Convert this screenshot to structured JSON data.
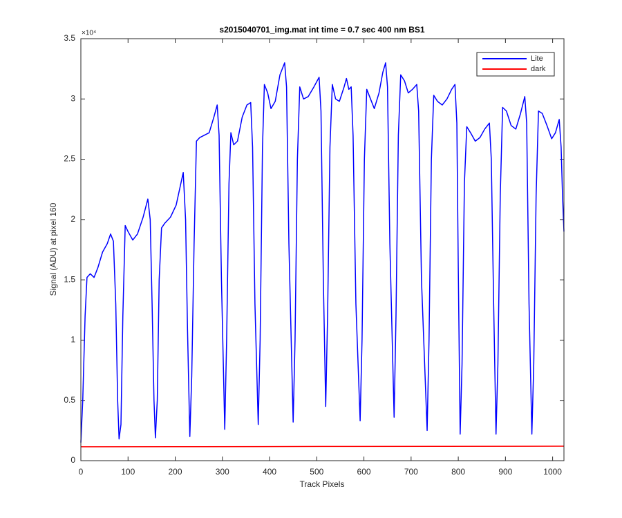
{
  "chart_data": {
    "type": "line",
    "title": "s2015040701_img.mat int time = 0.7 sec  400 nm BS1",
    "x_label": "Track Pixels",
    "y_label": "Signal (ADU) at pixel 160",
    "y_exponent": "×10⁴",
    "xlim": [
      0,
      1024
    ],
    "ylim": [
      0,
      3.5
    ],
    "xticks": [
      0,
      100,
      200,
      300,
      400,
      500,
      600,
      700,
      800,
      900,
      1000
    ],
    "yticks": [
      0,
      0.5,
      1,
      1.5,
      2,
      2.5,
      3,
      3.5
    ],
    "legend_position": "northeast",
    "series": [
      {
        "name": "Lite",
        "color": "#0000ff",
        "x": [
          0,
          4,
          9,
          13,
          20,
          28,
          36,
          46,
          56,
          63,
          69,
          74,
          78,
          81,
          85,
          89,
          94,
          100,
          110,
          120,
          132,
          142,
          147,
          151,
          155,
          158,
          162,
          166,
          171,
          178,
          190,
          202,
          212,
          217,
          222,
          226,
          231,
          235,
          240,
          245,
          252,
          262,
          272,
          282,
          289,
          293,
          298,
          305,
          309,
          314,
          318,
          324,
          332,
          342,
          352,
          360,
          364,
          369,
          376,
          380,
          385,
          389,
          396,
          403,
          412,
          422,
          432,
          436,
          441,
          450,
          454,
          459,
          464,
          472,
          482,
          494,
          505,
          509,
          514,
          519,
          523,
          528,
          533,
          540,
          548,
          558,
          563,
          568,
          573,
          577,
          583,
          592,
          596,
          601,
          606,
          614,
          622,
          632,
          640,
          646,
          650,
          655,
          664,
          668,
          673,
          678,
          686,
          694,
          703,
          712,
          716,
          722,
          734,
          738,
          743,
          748,
          756,
          766,
          776,
          786,
          793,
          797,
          800,
          804,
          808,
          813,
          818,
          826,
          836,
          846,
          856,
          866,
          870,
          875,
          880,
          884,
          889,
          894,
          902,
          912,
          922,
          932,
          941,
          945,
          950,
          956,
          960,
          965,
          970,
          978,
          988,
          998,
          1006,
          1014,
          1018,
          1021,
          1024
        ],
        "values": [
          0.15,
          0.5,
          1.2,
          1.52,
          1.55,
          1.52,
          1.6,
          1.73,
          1.8,
          1.88,
          1.82,
          1.3,
          0.5,
          0.18,
          0.3,
          1.2,
          1.95,
          1.9,
          1.83,
          1.88,
          2.02,
          2.17,
          2.0,
          1.3,
          0.5,
          0.19,
          0.5,
          1.5,
          1.93,
          1.97,
          2.02,
          2.12,
          2.3,
          2.39,
          2.0,
          1.1,
          0.2,
          0.7,
          1.8,
          2.65,
          2.68,
          2.7,
          2.72,
          2.85,
          2.95,
          2.7,
          1.5,
          0.26,
          1.0,
          2.3,
          2.72,
          2.62,
          2.65,
          2.85,
          2.95,
          2.97,
          2.6,
          1.3,
          0.3,
          1.0,
          2.6,
          3.12,
          3.05,
          2.92,
          2.98,
          3.2,
          3.3,
          3.1,
          1.8,
          0.32,
          1.0,
          2.5,
          3.1,
          3.0,
          3.02,
          3.1,
          3.18,
          2.9,
          1.5,
          0.45,
          1.2,
          2.6,
          3.12,
          3.0,
          2.98,
          3.1,
          3.17,
          3.08,
          3.1,
          2.7,
          1.3,
          0.33,
          1.0,
          2.5,
          3.08,
          3.0,
          2.92,
          3.05,
          3.22,
          3.3,
          3.1,
          1.8,
          0.36,
          1.2,
          2.7,
          3.2,
          3.15,
          3.05,
          3.08,
          3.12,
          2.9,
          1.5,
          0.25,
          1.0,
          2.5,
          3.03,
          2.98,
          2.95,
          3.0,
          3.08,
          3.12,
          2.8,
          1.6,
          0.22,
          0.8,
          2.3,
          2.77,
          2.72,
          2.65,
          2.68,
          2.75,
          2.8,
          2.5,
          1.3,
          0.22,
          0.8,
          2.2,
          2.93,
          2.9,
          2.78,
          2.75,
          2.88,
          3.02,
          2.8,
          1.3,
          0.22,
          0.8,
          2.2,
          2.9,
          2.88,
          2.78,
          2.67,
          2.72,
          2.83,
          2.6,
          2.2,
          1.9
        ]
      },
      {
        "name": "dark",
        "color": "#ff0000",
        "x": [
          0,
          256,
          512,
          768,
          1024
        ],
        "values": [
          0.115,
          0.116,
          0.118,
          0.119,
          0.12
        ]
      }
    ]
  }
}
